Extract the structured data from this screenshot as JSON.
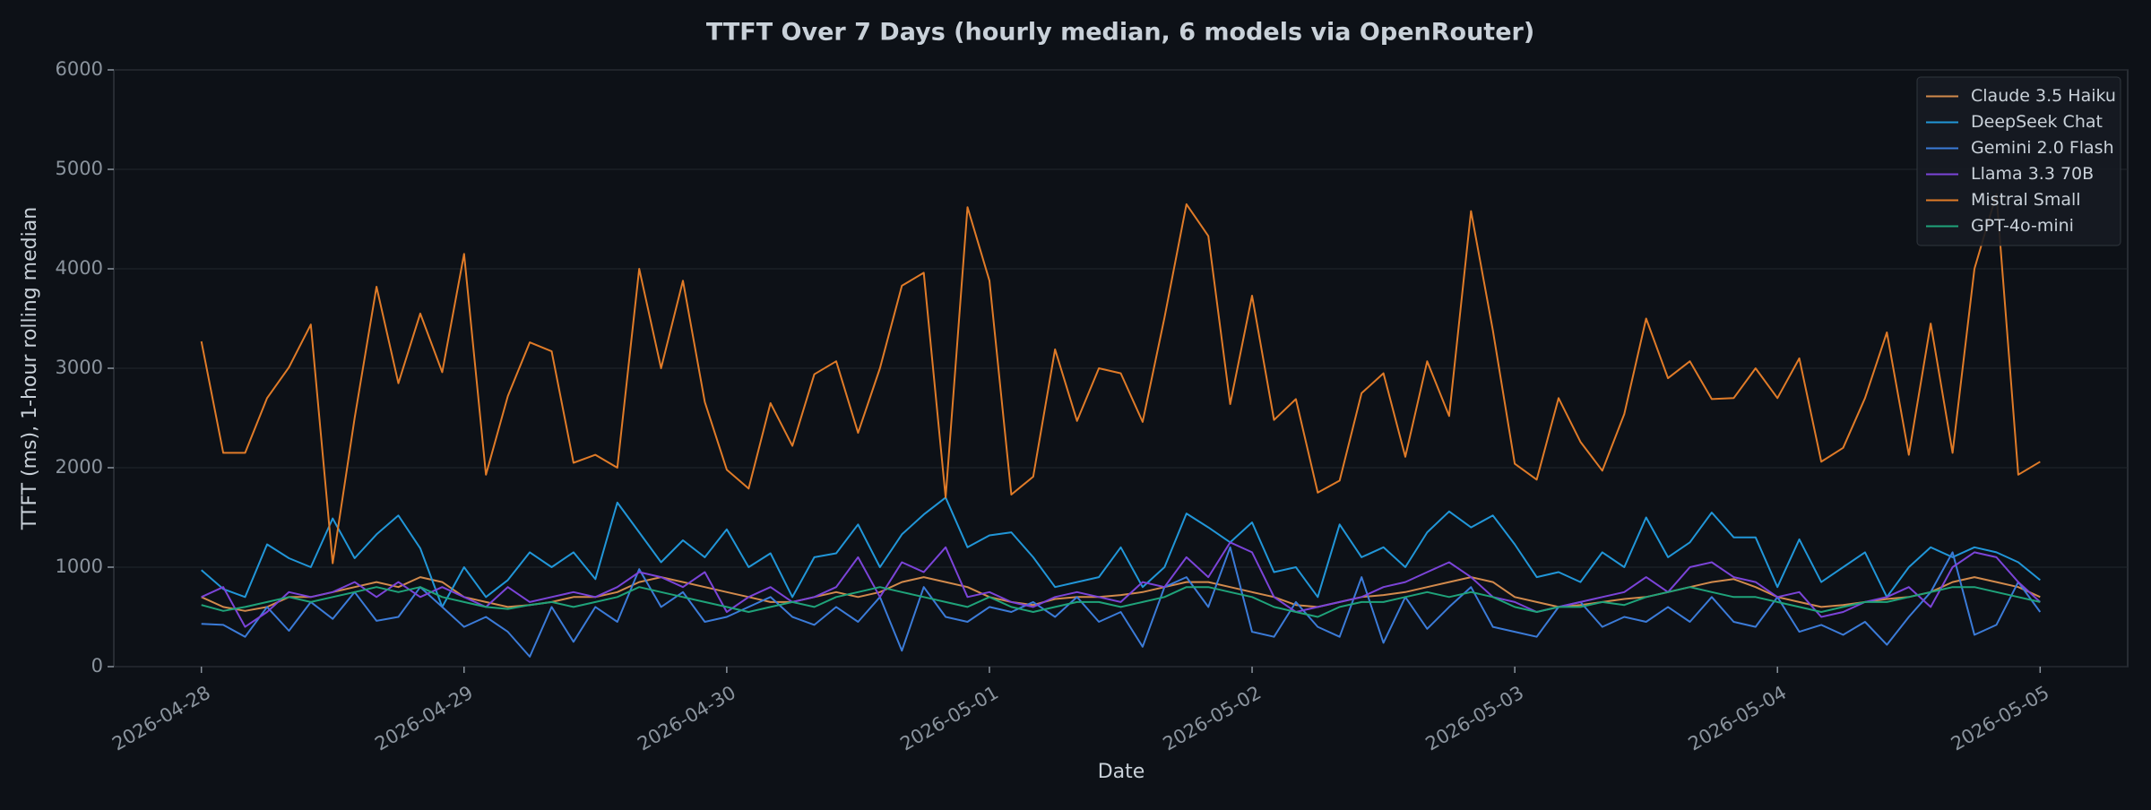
{
  "chart_data": {
    "type": "line",
    "title": "TTFT Over 7 Days (hourly median, 6 models via OpenRouter)",
    "x_label": "Date",
    "y_label": "TTFT (ms), 1-hour rolling median",
    "x": [
      "2026-04-28T00:00",
      "2026-04-28T02:00",
      "2026-04-28T04:00",
      "2026-04-28T06:00",
      "2026-04-28T08:00",
      "2026-04-28T10:00",
      "2026-04-28T12:00",
      "2026-04-28T14:00",
      "2026-04-28T16:00",
      "2026-04-28T18:00",
      "2026-04-28T20:00",
      "2026-04-28T22:00",
      "2026-04-29T00:00",
      "2026-04-29T02:00",
      "2026-04-29T04:00",
      "2026-04-29T06:00",
      "2026-04-29T08:00",
      "2026-04-29T10:00",
      "2026-04-29T12:00",
      "2026-04-29T14:00",
      "2026-04-29T16:00",
      "2026-04-29T18:00",
      "2026-04-29T20:00",
      "2026-04-29T22:00",
      "2026-04-30T00:00",
      "2026-04-30T02:00",
      "2026-04-30T04:00",
      "2026-04-30T06:00",
      "2026-04-30T08:00",
      "2026-04-30T10:00",
      "2026-04-30T12:00",
      "2026-04-30T14:00",
      "2026-04-30T16:00",
      "2026-04-30T18:00",
      "2026-04-30T20:00",
      "2026-04-30T22:00",
      "2026-05-01T00:00",
      "2026-05-01T02:00",
      "2026-05-01T04:00",
      "2026-05-01T06:00",
      "2026-05-01T08:00",
      "2026-05-01T10:00",
      "2026-05-01T12:00",
      "2026-05-01T14:00",
      "2026-05-01T16:00",
      "2026-05-01T18:00",
      "2026-05-01T20:00",
      "2026-05-01T22:00",
      "2026-05-02T00:00",
      "2026-05-02T02:00",
      "2026-05-02T04:00",
      "2026-05-02T06:00",
      "2026-05-02T08:00",
      "2026-05-02T10:00",
      "2026-05-02T12:00",
      "2026-05-02T14:00",
      "2026-05-02T16:00",
      "2026-05-02T18:00",
      "2026-05-02T20:00",
      "2026-05-02T22:00",
      "2026-05-03T00:00",
      "2026-05-03T02:00",
      "2026-05-03T04:00",
      "2026-05-03T06:00",
      "2026-05-03T08:00",
      "2026-05-03T10:00",
      "2026-05-03T12:00",
      "2026-05-03T14:00",
      "2026-05-03T16:00",
      "2026-05-03T18:00",
      "2026-05-03T20:00",
      "2026-05-03T22:00",
      "2026-05-04T00:00",
      "2026-05-04T02:00",
      "2026-05-04T04:00",
      "2026-05-04T06:00",
      "2026-05-04T08:00",
      "2026-05-04T10:00",
      "2026-05-04T12:00",
      "2026-05-04T14:00",
      "2026-05-04T16:00",
      "2026-05-04T18:00",
      "2026-05-04T20:00",
      "2026-05-04T22:00",
      "2026-05-05T00:00"
    ],
    "series": [
      {
        "name": "Claude 3.5 Haiku",
        "color": "#d28a4c",
        "values": [
          700,
          600,
          560,
          600,
          700,
          700,
          750,
          800,
          850,
          800,
          900,
          850,
          700,
          650,
          600,
          620,
          650,
          700,
          700,
          750,
          850,
          900,
          850,
          800,
          750,
          700,
          650,
          650,
          700,
          750,
          700,
          750,
          850,
          900,
          850,
          800,
          700,
          650,
          620,
          680,
          700,
          700,
          720,
          750,
          800,
          850,
          850,
          800,
          750,
          700,
          620,
          600,
          650,
          700,
          720,
          750,
          800,
          850,
          900,
          850,
          700,
          650,
          600,
          620,
          650,
          680,
          700,
          750,
          800,
          850,
          880,
          800,
          700,
          650,
          600,
          620,
          650,
          680,
          700,
          750,
          850,
          900,
          850,
          800,
          700
        ]
      },
      {
        "name": "DeepSeek Chat",
        "color": "#2196d8",
        "values": [
          970,
          780,
          700,
          1230,
          1090,
          1000,
          1490,
          1090,
          1330,
          1520,
          1190,
          600,
          1000,
          700,
          870,
          1150,
          1000,
          1150,
          880,
          1650,
          1350,
          1050,
          1270,
          1100,
          1380,
          1000,
          1140,
          700,
          1100,
          1140,
          1430,
          1000,
          1330,
          1530,
          1700,
          1200,
          1320,
          1350,
          1100,
          800,
          850,
          900,
          1200,
          800,
          1000,
          1540,
          1400,
          1250,
          1450,
          950,
          1000,
          700,
          1430,
          1100,
          1200,
          1000,
          1350,
          1560,
          1400,
          1520,
          1230,
          900,
          950,
          850,
          1150,
          1000,
          1500,
          1100,
          1250,
          1550,
          1300,
          1300,
          800,
          1280,
          850,
          1000,
          1150,
          700,
          1000,
          1200,
          1100,
          1200,
          1150,
          1050,
          870
        ]
      },
      {
        "name": "Gemini 2.0 Flash",
        "color": "#3b7bd8",
        "values": [
          430,
          420,
          300,
          600,
          360,
          650,
          480,
          750,
          460,
          500,
          800,
          600,
          400,
          500,
          350,
          100,
          600,
          250,
          600,
          450,
          980,
          600,
          750,
          450,
          500,
          600,
          700,
          500,
          420,
          600,
          450,
          700,
          160,
          800,
          500,
          450,
          600,
          550,
          650,
          500,
          700,
          450,
          550,
          200,
          800,
          900,
          600,
          1200,
          350,
          300,
          650,
          400,
          300,
          900,
          240,
          700,
          380,
          600,
          800,
          400,
          350,
          300,
          600,
          650,
          400,
          500,
          450,
          600,
          450,
          700,
          450,
          400,
          700,
          350,
          420,
          320,
          450,
          220,
          500,
          750,
          1150,
          320,
          420,
          850,
          550
        ]
      },
      {
        "name": "Llama 3.3 70B",
        "color": "#7b44d8",
        "values": [
          700,
          800,
          400,
          550,
          750,
          700,
          750,
          850,
          700,
          850,
          700,
          800,
          700,
          600,
          800,
          650,
          700,
          750,
          700,
          800,
          950,
          900,
          800,
          950,
          550,
          700,
          800,
          650,
          700,
          800,
          1100,
          700,
          1050,
          950,
          1200,
          700,
          750,
          650,
          600,
          700,
          750,
          700,
          650,
          850,
          800,
          1100,
          900,
          1250,
          1150,
          700,
          550,
          600,
          650,
          700,
          800,
          850,
          950,
          1050,
          900,
          700,
          650,
          550,
          600,
          650,
          700,
          750,
          900,
          750,
          1000,
          1050,
          900,
          850,
          700,
          750,
          500,
          550,
          650,
          700,
          800,
          600,
          1000,
          1150,
          1100,
          850,
          650
        ]
      },
      {
        "name": "Mistral Small",
        "color": "#e07b28",
        "values": [
          3270,
          2150,
          2150,
          2700,
          3010,
          3440,
          1040,
          2500,
          3820,
          2850,
          3550,
          2960,
          4150,
          1930,
          2720,
          3260,
          3170,
          2050,
          2130,
          2000,
          4000,
          3000,
          3880,
          2660,
          1980,
          1790,
          2650,
          2220,
          2940,
          3070,
          2350,
          3000,
          3830,
          3960,
          1700,
          4620,
          3880,
          1730,
          1910,
          3190,
          2470,
          3000,
          2950,
          2460,
          3510,
          4650,
          4330,
          2640,
          3730,
          2480,
          2690,
          1750,
          1870,
          2750,
          2950,
          2110,
          3070,
          2520,
          4580,
          3380,
          2040,
          1880,
          2700,
          2260,
          1970,
          2540,
          3500,
          2900,
          3070,
          2690,
          2700,
          3000,
          2700,
          3100,
          2060,
          2200,
          2700,
          3360,
          2130,
          3450,
          2150,
          4000,
          4750,
          1930,
          2060
        ]
      },
      {
        "name": "GPT-4o-mini",
        "color": "#1fa37a",
        "values": [
          620,
          560,
          600,
          650,
          700,
          650,
          700,
          750,
          800,
          750,
          800,
          700,
          650,
          600,
          580,
          620,
          650,
          600,
          650,
          700,
          800,
          750,
          700,
          650,
          600,
          550,
          600,
          650,
          600,
          700,
          750,
          800,
          750,
          700,
          650,
          600,
          700,
          600,
          550,
          600,
          650,
          650,
          600,
          650,
          700,
          800,
          800,
          750,
          700,
          600,
          550,
          500,
          600,
          650,
          650,
          700,
          750,
          700,
          750,
          700,
          600,
          550,
          600,
          600,
          650,
          620,
          700,
          750,
          800,
          750,
          700,
          700,
          650,
          600,
          550,
          600,
          650,
          650,
          700,
          750,
          800,
          800,
          750,
          700,
          650
        ]
      }
    ],
    "xlim": [
      "2026-04-27T16:00",
      "2026-05-05T08:00"
    ],
    "xticks": [
      "2026-04-28",
      "2026-04-29",
      "2026-04-30",
      "2026-05-01",
      "2026-05-02",
      "2026-05-03",
      "2026-05-04",
      "2026-05-05"
    ],
    "ylim": [
      0,
      6000
    ],
    "yticks": [
      0,
      1000,
      2000,
      3000,
      4000,
      5000,
      6000
    ],
    "grid": true,
    "legend": "upper right"
  }
}
